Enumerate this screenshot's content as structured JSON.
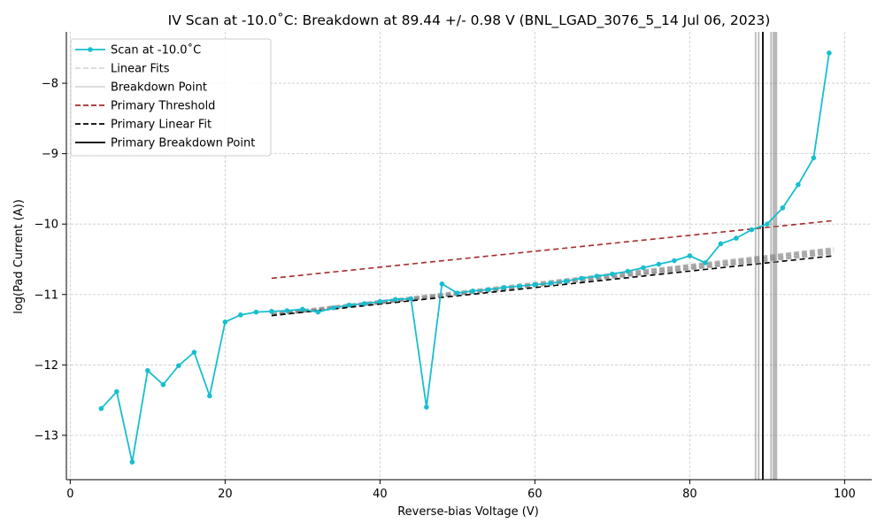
{
  "chart_data": {
    "type": "line",
    "title": "IV Scan at -10.0˚C: Breakdown at 89.44 +/- 0.98 V (BNL_LGAD_3076_5_14 Jul 06, 2023)",
    "xlabel": "Reverse-bias Voltage (V)",
    "ylabel": "log(Pad Current (A))",
    "xlim": [
      -0.5,
      103.5
    ],
    "ylim": [
      -13.63,
      -7.27
    ],
    "xticks": [
      0,
      20,
      40,
      60,
      80,
      100
    ],
    "yticks": [
      -13,
      -12,
      -11,
      -10,
      -9,
      -8
    ],
    "xtick_labels": [
      "0",
      "20",
      "40",
      "60",
      "80",
      "100"
    ],
    "ytick_labels": [
      "−13",
      "−12",
      "−11",
      "−10",
      "−9",
      "−8"
    ],
    "grid": true,
    "legend_position": "top-left",
    "legend": [
      {
        "label": "Scan at -10.0˚C",
        "style": "marker-line",
        "color": "#17becf"
      },
      {
        "label": "Linear Fits",
        "style": "dashed",
        "color": "#d8d8d8"
      },
      {
        "label": "Breakdown Point",
        "style": "solid",
        "color": "#d8d8d8"
      },
      {
        "label": "Primary Threshold",
        "style": "dashed",
        "color": "#a52a2a"
      },
      {
        "label": "Primary Linear Fit",
        "style": "dashed",
        "color": "#000000"
      },
      {
        "label": "Primary Breakdown Point",
        "style": "solid",
        "color": "#000000"
      }
    ],
    "series": [
      {
        "name": "Scan at -10.0˚C",
        "color": "#17becf",
        "x": [
          4,
          6,
          8,
          10,
          12,
          14,
          16,
          18,
          20,
          22,
          24,
          26,
          28,
          30,
          32,
          34,
          36,
          38,
          40,
          42,
          44,
          46,
          48,
          50,
          52,
          54,
          56,
          58,
          60,
          62,
          64,
          66,
          68,
          70,
          72,
          74,
          76,
          78,
          80,
          82,
          84,
          86,
          88,
          90,
          92,
          94,
          96,
          98
        ],
        "y": [
          -12.62,
          -12.38,
          -13.38,
          -12.08,
          -12.28,
          -12.01,
          -11.82,
          -12.44,
          -11.39,
          -11.29,
          -11.25,
          -11.24,
          -11.23,
          -11.21,
          -11.25,
          -11.19,
          -11.15,
          -11.13,
          -11.1,
          -11.07,
          -11.06,
          -12.6,
          -10.85,
          -10.98,
          -10.95,
          -10.93,
          -10.9,
          -10.88,
          -10.86,
          -10.84,
          -10.81,
          -10.77,
          -10.74,
          -10.71,
          -10.67,
          -10.62,
          -10.57,
          -10.52,
          -10.45,
          -10.55,
          -10.28,
          -10.2,
          -10.08,
          -10.0,
          -9.77,
          -9.44,
          -9.06,
          -7.57
        ]
      }
    ],
    "primary_threshold": {
      "x": [
        26,
        98.6
      ],
      "y": [
        -10.77,
        -9.95
      ],
      "color": "#a52a2a"
    },
    "primary_linear_fit": {
      "x": [
        26,
        98.6
      ],
      "y": [
        -11.3,
        -10.45
      ],
      "color": "#000000"
    },
    "linear_fits": [
      {
        "x": [
          26,
          98.6
        ],
        "y": [
          -11.28,
          -10.36
        ]
      },
      {
        "x": [
          26,
          98.6
        ],
        "y": [
          -11.29,
          -10.38
        ]
      },
      {
        "x": [
          26,
          98.6
        ],
        "y": [
          -11.27,
          -10.34
        ]
      },
      {
        "x": [
          26,
          98.6
        ],
        "y": [
          -11.3,
          -10.4
        ]
      },
      {
        "x": [
          26,
          98.6
        ],
        "y": [
          -11.29,
          -10.42
        ]
      }
    ],
    "breakdown_points": [
      88.5,
      88.9,
      90.5,
      90.8,
      91.0,
      91.2
    ],
    "primary_breakdown": 89.44
  }
}
